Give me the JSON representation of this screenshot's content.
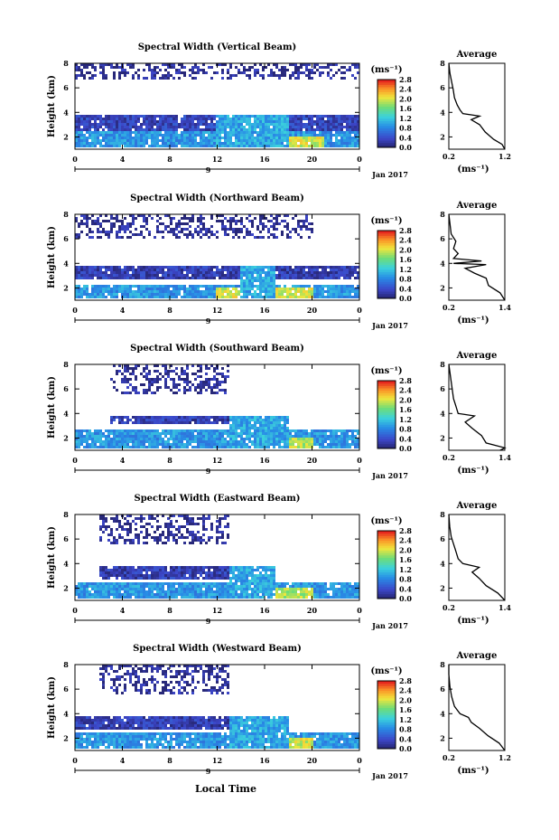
{
  "figure": {
    "x_axis_title": "Local Time",
    "date_label": "Jan 2017",
    "day_label": "9",
    "unit_label": "(ms⁻¹)",
    "avg_unit_label": "(ms⁻¹)"
  },
  "chart_data": [
    {
      "type": "heatmap",
      "title": "Spectral Width (Vertical Beam)",
      "ylabel": "Height (km)",
      "xlabel": "Local Time",
      "x_ticks": [
        "0",
        "4",
        "8",
        "12",
        "16",
        "20",
        "0"
      ],
      "y_ticks": [
        "2",
        "4",
        "6",
        "8"
      ],
      "xlim": [
        0,
        24
      ],
      "ylim": [
        1,
        8
      ],
      "colorbar": {
        "ticks": [
          "0.0",
          "0.4",
          "0.8",
          "1.2",
          "1.6",
          "2.0",
          "2.4",
          "2.8"
        ],
        "range": [
          0,
          2.8
        ]
      },
      "layers": [
        {
          "x": [
            0,
            24
          ],
          "y": [
            1,
            2.4
          ],
          "value": 0.9
        },
        {
          "x": [
            0,
            24
          ],
          "y": [
            2.4,
            3.7
          ],
          "value": 0.3
        },
        {
          "x": [
            0,
            24
          ],
          "y": [
            6.6,
            8
          ],
          "value": 0.1,
          "sparse": true
        },
        {
          "x": [
            12,
            21
          ],
          "y": [
            1,
            1.8
          ],
          "value": 2.0
        },
        {
          "x": [
            12,
            18
          ],
          "y": [
            1,
            3.8
          ],
          "value": 1.0
        }
      ],
      "average": {
        "title": "Average",
        "xlim": [
          0.2,
          1.2
        ],
        "x_ticks": [
          "0.2",
          "1.2"
        ],
        "ylim": [
          1,
          8
        ],
        "y_ticks": [
          "2",
          "4",
          "6",
          "8"
        ],
        "profile": [
          [
            1.2,
            1.0
          ],
          [
            1.15,
            1.4
          ],
          [
            1.0,
            1.8
          ],
          [
            0.85,
            2.4
          ],
          [
            0.75,
            3.0
          ],
          [
            0.6,
            3.4
          ],
          [
            0.75,
            3.7
          ],
          [
            0.45,
            3.9
          ],
          [
            0.4,
            4.2
          ],
          [
            0.35,
            4.6
          ],
          [
            0.3,
            5.2
          ],
          [
            0.28,
            5.8
          ],
          [
            0.25,
            6.5
          ],
          [
            0.22,
            7.2
          ],
          [
            0.2,
            8.0
          ]
        ]
      }
    },
    {
      "type": "heatmap",
      "title": "Spectral Width (Northward Beam)",
      "ylabel": "Height (km)",
      "xlabel": "Local Time",
      "x_ticks": [
        "0",
        "4",
        "8",
        "12",
        "16",
        "20",
        "0"
      ],
      "y_ticks": [
        "2",
        "4",
        "6",
        "8"
      ],
      "xlim": [
        0,
        24
      ],
      "ylim": [
        1,
        8
      ],
      "colorbar": {
        "ticks": [
          "0.0",
          "0.4",
          "0.8",
          "1.2",
          "1.6",
          "2.0",
          "2.4",
          "2.8"
        ],
        "range": [
          0,
          2.8
        ]
      },
      "layers": [
        {
          "x": [
            0,
            24
          ],
          "y": [
            1,
            2.2
          ],
          "value": 0.9
        },
        {
          "x": [
            0,
            24
          ],
          "y": [
            2.6,
            3.6
          ],
          "value": 0.25
        },
        {
          "x": [
            0,
            20
          ],
          "y": [
            6,
            8
          ],
          "value": 0.1,
          "sparse": true
        },
        {
          "x": [
            12,
            20
          ],
          "y": [
            1,
            1.8
          ],
          "value": 2.0
        },
        {
          "x": [
            14,
            17
          ],
          "y": [
            1,
            3.8
          ],
          "value": 1.0
        }
      ],
      "average": {
        "title": "Average",
        "xlim": [
          0.2,
          1.4
        ],
        "x_ticks": [
          "0.2",
          "1.4"
        ],
        "ylim": [
          1,
          8
        ],
        "y_ticks": [
          "2",
          "4",
          "6",
          "8"
        ],
        "profile": [
          [
            1.4,
            1.0
          ],
          [
            1.3,
            1.6
          ],
          [
            1.05,
            2.2
          ],
          [
            1.0,
            2.8
          ],
          [
            0.75,
            3.2
          ],
          [
            0.55,
            3.6
          ],
          [
            1.0,
            3.9
          ],
          [
            0.3,
            4.0
          ],
          [
            0.9,
            4.2
          ],
          [
            0.3,
            4.4
          ],
          [
            0.4,
            4.8
          ],
          [
            0.3,
            5.2
          ],
          [
            0.35,
            5.8
          ],
          [
            0.25,
            6.4
          ],
          [
            0.2,
            8.0
          ]
        ]
      }
    },
    {
      "type": "heatmap",
      "title": "Spectral Width (Southward Beam)",
      "ylabel": "Height (km)",
      "xlabel": "Local Time",
      "x_ticks": [
        "0",
        "4",
        "8",
        "12",
        "16",
        "20",
        "0"
      ],
      "y_ticks": [
        "2",
        "4",
        "6",
        "8"
      ],
      "xlim": [
        0,
        24
      ],
      "ylim": [
        1,
        8
      ],
      "colorbar": {
        "ticks": [
          "0.0",
          "0.4",
          "0.8",
          "1.2",
          "1.6",
          "2.0",
          "2.4",
          "2.8"
        ],
        "range": [
          0,
          2.8
        ]
      },
      "layers": [
        {
          "x": [
            0,
            24
          ],
          "y": [
            1,
            2.5
          ],
          "value": 0.9
        },
        {
          "x": [
            3,
            13
          ],
          "y": [
            3.0,
            3.8
          ],
          "value": 0.25
        },
        {
          "x": [
            3,
            13
          ],
          "y": [
            5.5,
            8
          ],
          "value": 0.1,
          "sparse": true
        },
        {
          "x": [
            13,
            20
          ],
          "y": [
            1,
            1.8
          ],
          "value": 1.9
        },
        {
          "x": [
            13,
            18
          ],
          "y": [
            1,
            3.6
          ],
          "value": 1.0
        }
      ],
      "average": {
        "title": "Average",
        "xlim": [
          0.2,
          1.4
        ],
        "x_ticks": [
          "0.2",
          "1.4"
        ],
        "ylim": [
          1,
          8
        ],
        "y_ticks": [
          "2",
          "4",
          "6",
          "8"
        ],
        "profile": [
          [
            1.3,
            1.0
          ],
          [
            1.4,
            1.2
          ],
          [
            1.0,
            1.6
          ],
          [
            0.9,
            2.2
          ],
          [
            0.7,
            2.8
          ],
          [
            0.55,
            3.3
          ],
          [
            0.75,
            3.8
          ],
          [
            0.4,
            4.0
          ],
          [
            0.35,
            4.6
          ],
          [
            0.3,
            5.2
          ],
          [
            0.28,
            5.8
          ],
          [
            0.25,
            6.6
          ],
          [
            0.2,
            8.0
          ]
        ]
      }
    },
    {
      "type": "heatmap",
      "title": "Spectral Width (Eastward Beam)",
      "ylabel": "Height (km)",
      "xlabel": "Local Time",
      "x_ticks": [
        "0",
        "4",
        "8",
        "12",
        "16",
        "20",
        "0"
      ],
      "y_ticks": [
        "2",
        "4",
        "6",
        "8"
      ],
      "xlim": [
        0,
        24
      ],
      "ylim": [
        1,
        8
      ],
      "colorbar": {
        "ticks": [
          "0.0",
          "0.4",
          "0.8",
          "1.2",
          "1.6",
          "2.0",
          "2.4",
          "2.8"
        ],
        "range": [
          0,
          2.8
        ]
      },
      "layers": [
        {
          "x": [
            0,
            24
          ],
          "y": [
            1,
            2.3
          ],
          "value": 0.9
        },
        {
          "x": [
            2,
            14
          ],
          "y": [
            2.6,
            3.8
          ],
          "value": 0.25
        },
        {
          "x": [
            2,
            13
          ],
          "y": [
            5.5,
            8
          ],
          "value": 0.1,
          "sparse": true
        },
        {
          "x": [
            13,
            20
          ],
          "y": [
            1,
            1.8
          ],
          "value": 1.9
        },
        {
          "x": [
            13,
            17
          ],
          "y": [
            1,
            3.8
          ],
          "value": 1.0
        }
      ],
      "average": {
        "title": "Average",
        "xlim": [
          0.2,
          1.4
        ],
        "x_ticks": [
          "0.2",
          "1.4"
        ],
        "ylim": [
          1,
          8
        ],
        "y_ticks": [
          "2",
          "4",
          "6",
          "8"
        ],
        "profile": [
          [
            1.4,
            1.0
          ],
          [
            1.25,
            1.6
          ],
          [
            1.0,
            2.2
          ],
          [
            0.85,
            2.8
          ],
          [
            0.7,
            3.3
          ],
          [
            0.85,
            3.7
          ],
          [
            0.5,
            4.0
          ],
          [
            0.4,
            4.4
          ],
          [
            0.35,
            5.0
          ],
          [
            0.3,
            5.6
          ],
          [
            0.25,
            6.2
          ],
          [
            0.22,
            7.0
          ],
          [
            0.2,
            8.0
          ]
        ]
      }
    },
    {
      "type": "heatmap",
      "title": "Spectral Width (Westward Beam)",
      "ylabel": "Height (km)",
      "xlabel": "Local Time",
      "x_ticks": [
        "0",
        "4",
        "8",
        "12",
        "16",
        "20",
        "0"
      ],
      "y_ticks": [
        "2",
        "4",
        "6",
        "8"
      ],
      "xlim": [
        0,
        24
      ],
      "ylim": [
        1,
        8
      ],
      "colorbar": {
        "ticks": [
          "0.0",
          "0.4",
          "0.8",
          "1.2",
          "1.6",
          "2.0",
          "2.4",
          "2.8"
        ],
        "range": [
          0,
          2.8
        ]
      },
      "layers": [
        {
          "x": [
            0,
            24
          ],
          "y": [
            1,
            2.3
          ],
          "value": 0.9
        },
        {
          "x": [
            0,
            13
          ],
          "y": [
            2.6,
            3.8
          ],
          "value": 0.25
        },
        {
          "x": [
            2,
            13
          ],
          "y": [
            5.5,
            8
          ],
          "value": 0.1,
          "sparse": true
        },
        {
          "x": [
            13,
            20
          ],
          "y": [
            1,
            1.8
          ],
          "value": 2.0
        },
        {
          "x": [
            13,
            18
          ],
          "y": [
            1,
            3.8
          ],
          "value": 1.0
        }
      ],
      "average": {
        "title": "Average",
        "xlim": [
          0.2,
          1.2
        ],
        "x_ticks": [
          "0.2",
          "1.2"
        ],
        "ylim": [
          1,
          8
        ],
        "y_ticks": [
          "2",
          "4",
          "6",
          "8"
        ],
        "profile": [
          [
            1.2,
            1.0
          ],
          [
            1.1,
            1.6
          ],
          [
            0.9,
            2.2
          ],
          [
            0.75,
            2.8
          ],
          [
            0.6,
            3.3
          ],
          [
            0.55,
            3.7
          ],
          [
            0.4,
            4.0
          ],
          [
            0.3,
            4.6
          ],
          [
            0.25,
            5.4
          ],
          [
            0.22,
            6.2
          ],
          [
            0.2,
            7.2
          ],
          [
            0.2,
            8.0
          ]
        ]
      }
    }
  ]
}
